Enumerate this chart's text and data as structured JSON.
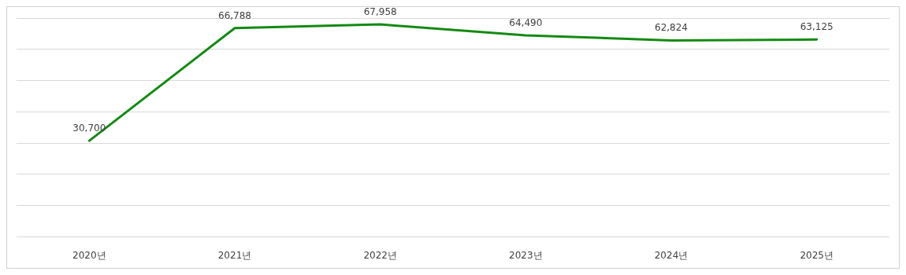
{
  "chart_data": {
    "type": "line",
    "categories": [
      "2020년",
      "2021년",
      "2022년",
      "2023년",
      "2024년",
      "2025년"
    ],
    "series": [
      {
        "color": "#138a13",
        "values": [
          30700,
          66788,
          67958,
          64490,
          62824,
          63125
        ],
        "value_labels": [
          "30,700",
          "66,788",
          "67,958",
          "64,490",
          "62,824",
          "63,125"
        ]
      }
    ],
    "tick_labels": "x",
    "grid": "y",
    "marker": "none",
    "line_style": "solid"
  }
}
